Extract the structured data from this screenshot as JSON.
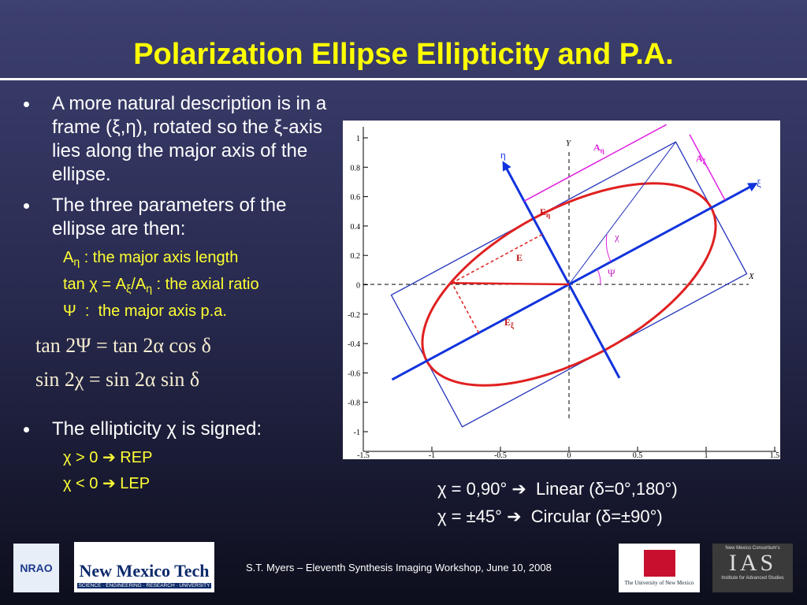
{
  "title": "Polarization Ellipse Ellipticity and P.A.",
  "bullets": [
    {
      "text": "A more natural description is in a frame (ξ,η), rotated so the ξ-axis lies along the major axis of the ellipse."
    },
    {
      "text": "The three parameters of the ellipse are then:",
      "items": [
        [
          "A",
          "η",
          " : the major axis length"
        ],
        [
          "tan χ = A",
          "ξ",
          "/A",
          "η",
          " : the axial ratio"
        ],
        [
          "Ψ  :  the major axis p.a."
        ]
      ]
    },
    {
      "text": "The ellipticity χ is signed:",
      "items": [
        [
          "χ > 0 ➔ REP"
        ],
        [
          "χ < 0 ➔ LEP"
        ]
      ]
    }
  ],
  "equations": [
    "tan 2Ψ = tan 2α cos δ",
    "sin 2χ = sin 2α sin δ"
  ],
  "figure": {
    "xticks": [
      -1.5,
      -1,
      -0.5,
      0,
      0.5,
      1,
      1.5
    ],
    "yticks": [
      1,
      0.8,
      0.6,
      0.4,
      0.2,
      0,
      -0.2,
      -0.4,
      -0.6,
      -0.8,
      -1
    ],
    "xlabel": "X",
    "ylabel": "Y",
    "eta": "η",
    "xi": "ξ",
    "a_eta": [
      "A",
      "η"
    ],
    "a_xi": [
      "A",
      "ξ"
    ],
    "e_eta": [
      "E",
      "η"
    ],
    "e": "E",
    "e_xi": [
      "E",
      "ξ"
    ],
    "chi": "χ",
    "psi": "Ψ"
  },
  "notes": [
    "χ = 0,90° ➔  Linear (δ=0°,180°)",
    "χ = ±45° ➔  Circular (δ=±90°)"
  ],
  "footer": "S.T. Myers – Eleventh Synthesis Imaging Workshop, June 10, 2008",
  "logos": {
    "nrao": "NRAO",
    "nmt": "New Mexico Tech",
    "nmt_sub": "SCIENCE · ENGINEERING · RESEARCH · UNIVERSITY",
    "unm": "The University of New Mexico",
    "ias_top": "New Mexico Consortium's",
    "ias": "IAS",
    "ias_sub": "Institute for Advanced Studies"
  }
}
